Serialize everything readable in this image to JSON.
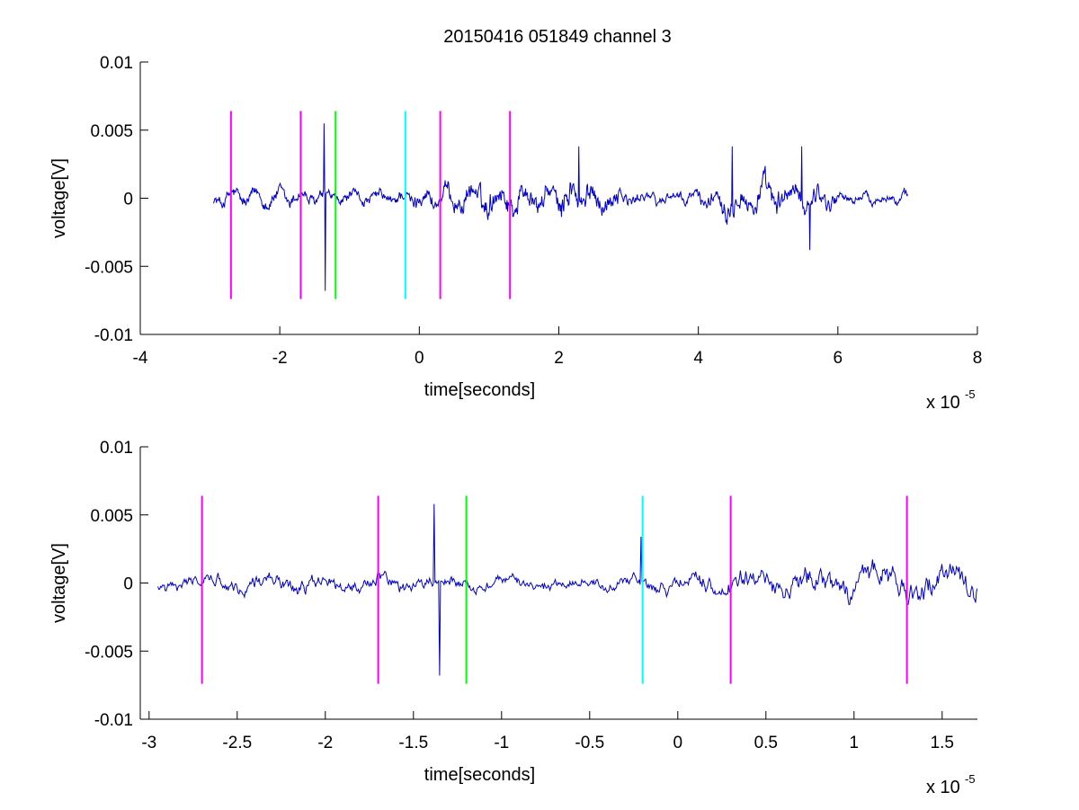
{
  "figure": {
    "title": "20150416 051849 channel 3"
  },
  "chart_data": [
    {
      "type": "line",
      "title": "20150416 051849 channel 3",
      "xlabel": "time[seconds]",
      "ylabel": "voltage[V]",
      "x_multiplier_label": "x 10",
      "x_multiplier_exponent": "-5",
      "xlim": [
        -4,
        8
      ],
      "ylim": [
        -0.01,
        0.01
      ],
      "x_ticks": [
        -4,
        -2,
        0,
        2,
        4,
        6,
        8
      ],
      "x_tick_labels": [
        "-4",
        "-2",
        "0",
        "2",
        "4",
        "6",
        "8"
      ],
      "y_ticks": [
        -0.01,
        -0.005,
        0,
        0.005,
        0.01
      ],
      "y_tick_labels": [
        "-0.01",
        "-0.005",
        "0",
        "0.005",
        "0.01"
      ],
      "series": [
        {
          "color": "#0000cc",
          "x_range": [
            -2.95,
            7.0
          ],
          "points": 1200,
          "typical_amplitude": 0.0015,
          "spikes": [
            {
              "x": -1.35,
              "y": -0.0068
            },
            {
              "x": -1.35,
              "y": 0.0055
            },
            {
              "x": 2.3,
              "y": 0.0038
            },
            {
              "x": 4.5,
              "y": 0.0038
            },
            {
              "x": 5.5,
              "y": 0.0038
            },
            {
              "x": 5.6,
              "y": -0.0038
            }
          ]
        }
      ],
      "markers": [
        {
          "x": -2.7,
          "color": "#ff00ff",
          "ymin": -0.0074,
          "ymax": 0.0064
        },
        {
          "x": -1.7,
          "color": "#ff00ff",
          "ymin": -0.0074,
          "ymax": 0.0064
        },
        {
          "x": -1.2,
          "color": "#00ff00",
          "ymin": -0.0074,
          "ymax": 0.0064
        },
        {
          "x": -0.2,
          "color": "#00ffff",
          "ymin": -0.0074,
          "ymax": 0.0064
        },
        {
          "x": 0.3,
          "color": "#ff00ff",
          "ymin": -0.0074,
          "ymax": 0.0064
        },
        {
          "x": 1.3,
          "color": "#ff00ff",
          "ymin": -0.0074,
          "ymax": 0.0064
        }
      ]
    },
    {
      "type": "line",
      "title": "",
      "xlabel": "time[seconds]",
      "ylabel": "voltage[V]",
      "x_multiplier_label": "x 10",
      "x_multiplier_exponent": "-5",
      "xlim": [
        -3.05,
        1.7
      ],
      "ylim": [
        -0.01,
        0.01
      ],
      "x_ticks": [
        -3,
        -2.5,
        -2,
        -1.5,
        -1,
        -0.5,
        0,
        0.5,
        1,
        1.5
      ],
      "x_tick_labels": [
        "-3",
        "-2.5",
        "-2",
        "-1.5",
        "-1",
        "-0.5",
        "0",
        "0.5",
        "1",
        "1.5"
      ],
      "y_ticks": [
        -0.01,
        -0.005,
        0,
        0.005,
        0.01
      ],
      "y_tick_labels": [
        "-0.01",
        "-0.005",
        "0",
        "0.005",
        "0.01"
      ],
      "series": [
        {
          "color": "#0000cc",
          "x_range": [
            -2.95,
            1.7
          ],
          "points": 900,
          "typical_amplitude": 0.0015,
          "spikes": [
            {
              "x": -1.35,
              "y": -0.0068
            },
            {
              "x": -1.37,
              "y": 0.0058
            },
            {
              "x": -0.2,
              "y": 0.0034
            }
          ]
        }
      ],
      "markers": [
        {
          "x": -2.7,
          "color": "#ff00ff",
          "ymin": -0.0074,
          "ymax": 0.0064
        },
        {
          "x": -1.7,
          "color": "#ff00ff",
          "ymin": -0.0074,
          "ymax": 0.0064
        },
        {
          "x": -1.2,
          "color": "#00ff00",
          "ymin": -0.0074,
          "ymax": 0.0064
        },
        {
          "x": -0.2,
          "color": "#00ffff",
          "ymin": -0.0074,
          "ymax": 0.0064
        },
        {
          "x": 0.3,
          "color": "#ff00ff",
          "ymin": -0.0074,
          "ymax": 0.0064
        },
        {
          "x": 1.3,
          "color": "#ff00ff",
          "ymin": -0.0074,
          "ymax": 0.0064
        }
      ]
    }
  ]
}
